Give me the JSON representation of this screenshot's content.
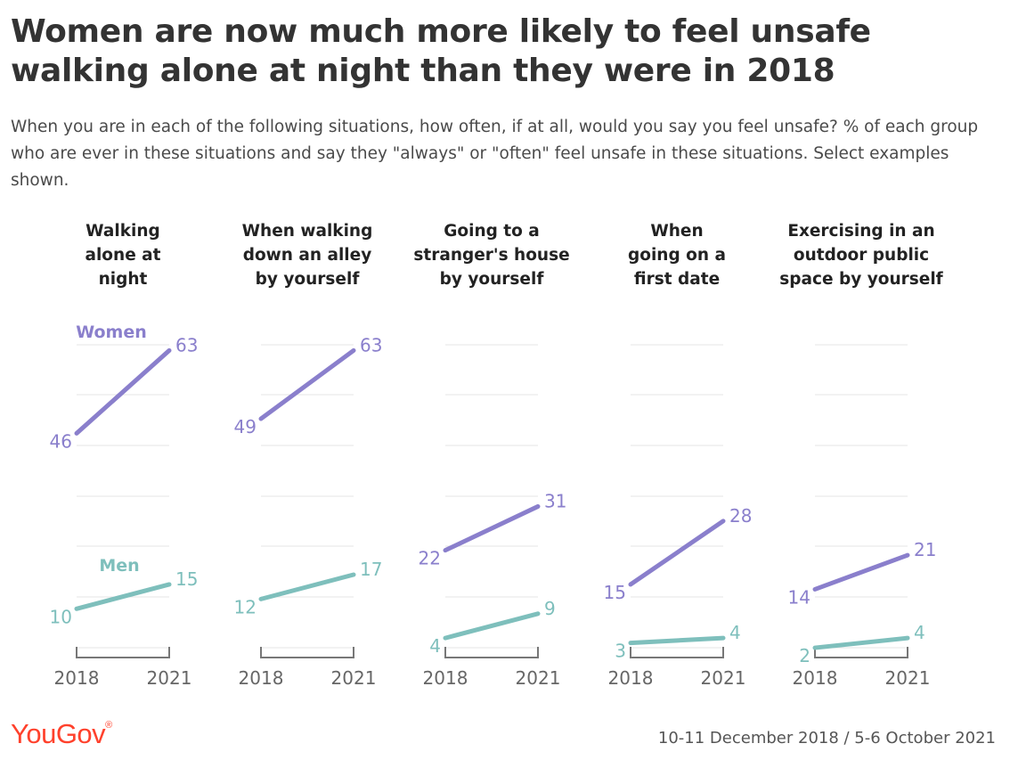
{
  "header": {
    "title": "Women are now much more likely to feel unsafe walking alone at night than they were in 2018",
    "subtitle": "When you are in each of the following situations, how often, if at all, would you say you feel unsafe? % of each group who are ever in these situations and say they \"always\" or \"often\" feel unsafe in these situations. Select examples shown."
  },
  "footer": {
    "logo": "YouGov",
    "source": "10-11 December 2018 / 5-6 October 2021"
  },
  "colors": {
    "women": "#8a7fcc",
    "men": "#7ebfbc"
  },
  "series_labels": {
    "women": "Women",
    "men": "Men"
  },
  "chart_data": {
    "type": "line",
    "x": [
      "2018",
      "2021"
    ],
    "ylim": [
      0,
      70
    ],
    "grid": true,
    "panels": [
      {
        "title": [
          "Walking",
          "alone at",
          "night"
        ],
        "series": [
          {
            "name": "Women",
            "values": [
              46,
              63
            ]
          },
          {
            "name": "Men",
            "values": [
              10,
              15
            ]
          }
        ]
      },
      {
        "title": [
          "When walking",
          "down an alley",
          "by yourself"
        ],
        "series": [
          {
            "name": "Women",
            "values": [
              49,
              63
            ]
          },
          {
            "name": "Men",
            "values": [
              12,
              17
            ]
          }
        ]
      },
      {
        "title": [
          "Going to a",
          "stranger's house",
          "by yourself"
        ],
        "series": [
          {
            "name": "Women",
            "values": [
              22,
              31
            ]
          },
          {
            "name": "Men",
            "values": [
              4,
              9
            ]
          }
        ]
      },
      {
        "title": [
          "When",
          "going on a",
          "first date"
        ],
        "series": [
          {
            "name": "Women",
            "values": [
              15,
              28
            ]
          },
          {
            "name": "Men",
            "values": [
              3,
              4
            ]
          }
        ]
      },
      {
        "title": [
          "Exercising in an",
          "outdoor public",
          "space by yourself"
        ],
        "series": [
          {
            "name": "Women",
            "values": [
              14,
              21
            ]
          },
          {
            "name": "Men",
            "values": [
              2,
              4
            ]
          }
        ]
      }
    ]
  }
}
